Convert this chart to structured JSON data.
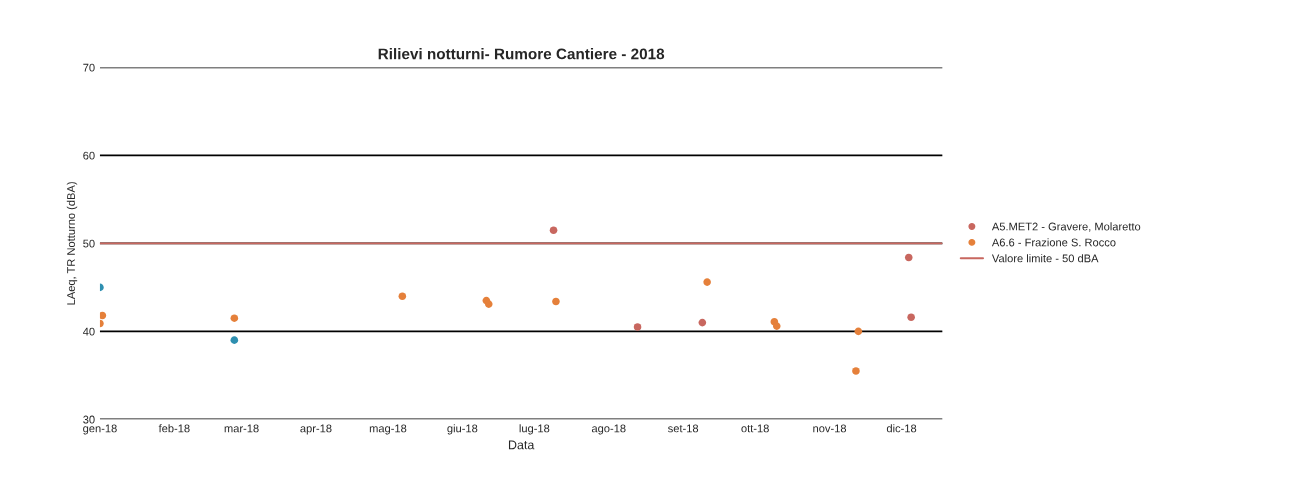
{
  "chart_data": {
    "type": "scatter",
    "title": "Rilievi notturni- Rumore Cantiere - 2018",
    "xlabel": "Data",
    "ylabel": "LAeq, TR Notturno (dBA)",
    "series": [
      {
        "name": "A5.MET2 - Gravere, Molaretto",
        "color": "#c8675f",
        "x": [
          "2018-07-09",
          "2018-08-13",
          "2018-09-09",
          "2018-12-04",
          "2018-12-05"
        ],
        "values": [
          51.5,
          40.5,
          41.0,
          48.4,
          41.6
        ]
      },
      {
        "name": "A6.6 - Frazione S. Rocco",
        "color": "#e5803a",
        "x": [
          "2018-01-02",
          "2018-01-01",
          "2018-02-26",
          "2018-05-07",
          "2018-06-11",
          "2018-06-12",
          "2018-07-10",
          "2018-09-11",
          "2018-10-09",
          "2018-10-10",
          "2018-11-13",
          "2018-11-12"
        ],
        "values": [
          41.8,
          40.9,
          41.5,
          44.0,
          43.5,
          43.1,
          43.4,
          45.6,
          41.1,
          40.6,
          40.0,
          35.5
        ]
      },
      {
        "color": "#2e8fb0",
        "x": [
          "2018-01-01",
          "2018-02-26"
        ],
        "values": [
          45.0,
          39.0
        ]
      }
    ],
    "ref_lines": [
      {
        "axis": "y",
        "value": 50,
        "label": "Valore limite - 50 dBA",
        "color": "#c8675f",
        "line_style": "solid"
      }
    ],
    "xlim": [
      "2018-01-01",
      "2018-12-18"
    ],
    "xticks": [
      {
        "value": "2018-01-01",
        "label": "gen-18"
      },
      {
        "value": "2018-02-01",
        "label": "feb-18"
      },
      {
        "value": "2018-03-01",
        "label": "mar-18"
      },
      {
        "value": "2018-04-01",
        "label": "apr-18"
      },
      {
        "value": "2018-05-01",
        "label": "mag-18"
      },
      {
        "value": "2018-06-01",
        "label": "giu-18"
      },
      {
        "value": "2018-07-01",
        "label": "lug-18"
      },
      {
        "value": "2018-08-01",
        "label": "ago-18"
      },
      {
        "value": "2018-09-01",
        "label": "set-18"
      },
      {
        "value": "2018-10-01",
        "label": "ott-18"
      },
      {
        "value": "2018-11-01",
        "label": "nov-18"
      },
      {
        "value": "2018-12-01",
        "label": "dic-18"
      }
    ],
    "ylim": [
      30,
      70
    ],
    "yticks": [
      30,
      40,
      50,
      60,
      70
    ],
    "grid": "y",
    "legend": "right",
    "marker": "circle"
  }
}
